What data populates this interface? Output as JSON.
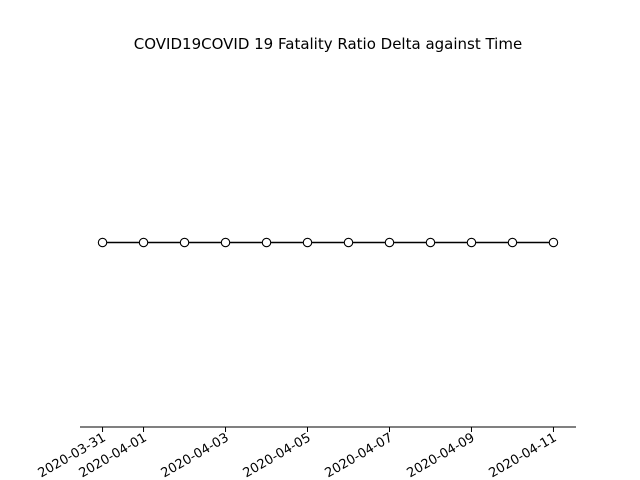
{
  "chart_data": {
    "type": "line",
    "title": "COVID19COVID 19 Fatality Ratio Delta against Time",
    "xlabel": "",
    "ylabel": "",
    "x": [
      "2020-03-31",
      "2020-04-01",
      "2020-04-02",
      "2020-04-03",
      "2020-04-04",
      "2020-04-05",
      "2020-04-06",
      "2020-04-07",
      "2020-04-08",
      "2020-04-09",
      "2020-04-10",
      "2020-04-11"
    ],
    "x_ticks": [
      "2020-03-31",
      "2020-04-01",
      "2020-04-03",
      "2020-04-05",
      "2020-04-07",
      "2020-04-09",
      "2020-04-11"
    ],
    "series": [
      {
        "values": [
          0,
          0,
          0,
          0,
          0,
          0,
          0,
          0,
          0,
          0,
          0,
          0
        ]
      }
    ],
    "ylim": [
      -0.055,
      0.055
    ],
    "y_axis_visible": false,
    "grid": false,
    "colors": {
      "line": "#000000",
      "marker_fill": "#ffffff",
      "marker_edge": "#000000"
    }
  }
}
